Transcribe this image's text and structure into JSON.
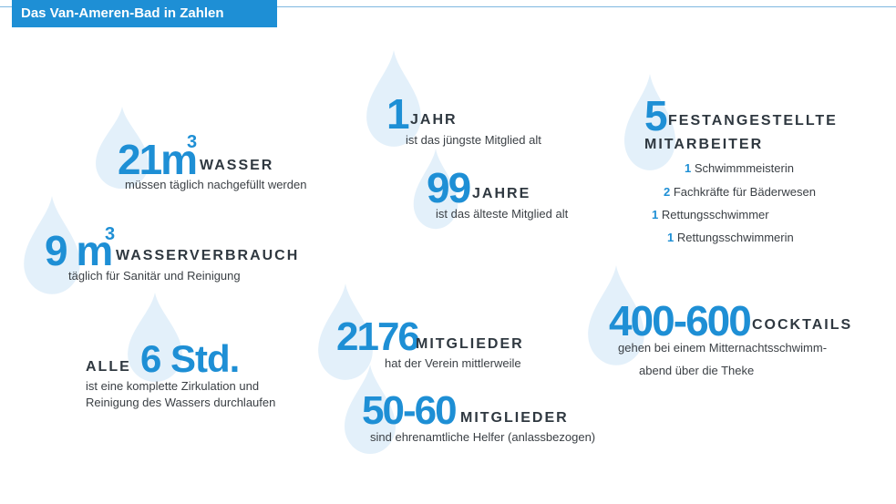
{
  "header": {
    "title": "Das Van-Ameren-Bad in Zahlen"
  },
  "facts": {
    "wasser": {
      "num": "21m",
      "sup": "3",
      "label": "WASSER",
      "text": "müssen täglich nachgefüllt werden"
    },
    "verbrauch": {
      "num": "9 m",
      "sup": "3",
      "label": "WASSERVERBRAUCH",
      "text": "täglich für Sanitär und Reinigung"
    },
    "zirkulation": {
      "prefix": "ALLE",
      "num": "6 Std.",
      "line1": "ist eine komplette Zirkulation und",
      "line2": "Reinigung des Wassers durchlaufen"
    },
    "jung": {
      "num": "1",
      "label": "JAHR",
      "text": "ist das jüngste Mitglied alt"
    },
    "alt": {
      "num": "99",
      "label": "JAHRE",
      "text": "ist das älteste Mitglied alt"
    },
    "mitglieder": {
      "num": "2176",
      "label": "MITGLIEDER",
      "text": "hat der Verein mittlerweile"
    },
    "helfer": {
      "num": "50-60",
      "label": "MITGLIEDER",
      "text": "sind ehrenamtliche Helfer (anlassbezogen)"
    },
    "mitarbeiter": {
      "num": "5",
      "label1": "FESTANGESTELLTE",
      "label2": "MITARBEITER",
      "staff": [
        {
          "count": "1",
          "role": "Schwimmmeisterin"
        },
        {
          "count": "2",
          "role": "Fachkräfte für Bäderwesen"
        },
        {
          "count": "1",
          "role": "Rettungsschwimmer"
        },
        {
          "count": "1",
          "role": "Rettungsschwimmerin"
        }
      ]
    },
    "cocktails": {
      "num": "400-600",
      "label": "COCKTAILS",
      "line1": "gehen bei einem Mitternachtsschwimm-",
      "line2": "abend über die Theke"
    }
  },
  "colors": {
    "accent": "#1e8fd5",
    "drop": "#e3f0fa",
    "text": "#333a40"
  }
}
